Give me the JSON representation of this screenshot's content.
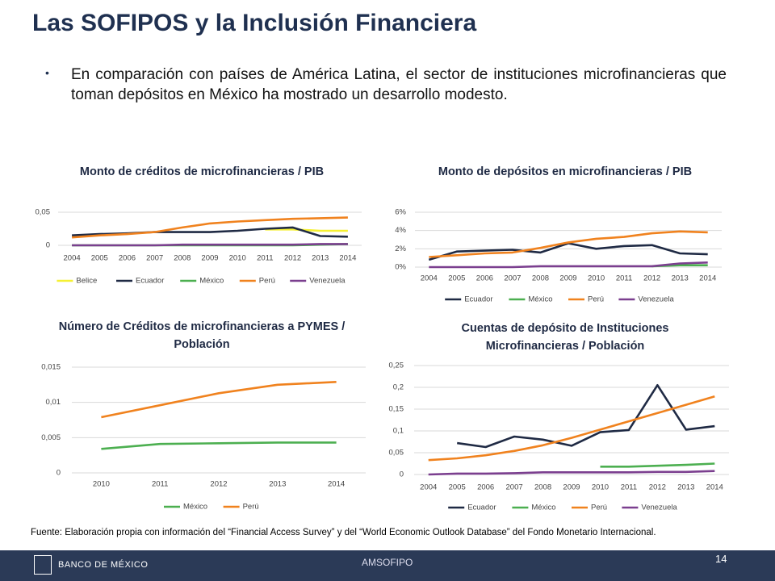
{
  "header": {
    "title": "Las SOFIPOS y la Inclusión Financiera"
  },
  "bullet": "En comparación con países de América Latina, el sector de instituciones microfinancieras que toman depósitos en México ha mostrado un desarrollo modesto.",
  "source": "Fuente: Elaboración propia con información del “Financial Access Survey” y del “World Economic Outlook Database” del Fondo Monetario Internacional.",
  "footer": {
    "logo": "BANCO DE MÉXICO",
    "center": "AMSOFIPO",
    "page": "14"
  },
  "chart_data": [
    {
      "type": "line",
      "title": "Monto de créditos de microfinancieras / PIB",
      "categories": [
        "2004",
        "2005",
        "2006",
        "2007",
        "2008",
        "2009",
        "2010",
        "2011",
        "2012",
        "2013",
        "2014"
      ],
      "ylim": [
        0,
        0.05
      ],
      "yticks": [
        0,
        {
          "value": 0.05,
          "label": "0,05"
        }
      ],
      "grid": true,
      "series": [
        {
          "name": "Belice",
          "color": "#f5f032",
          "values": [
            null,
            null,
            null,
            null,
            null,
            null,
            null,
            0.024,
            0.024,
            0.022,
            0.022
          ]
        },
        {
          "name": "Ecuador",
          "color": "#1f2a44",
          "values": [
            0.015,
            0.017,
            0.018,
            0.02,
            0.02,
            0.02,
            0.022,
            0.025,
            0.027,
            0.014,
            0.013
          ]
        },
        {
          "name": "México",
          "color": "#4caf50",
          "values": [
            0,
            0,
            0,
            0,
            0,
            0,
            0,
            0,
            0,
            0.001,
            0.002
          ]
        },
        {
          "name": "Perú",
          "color": "#f0821e",
          "values": [
            0.012,
            0.015,
            0.017,
            0.02,
            0.027,
            0.033,
            0.036,
            0.038,
            0.04,
            0.041,
            0.042
          ]
        },
        {
          "name": "Venezuela",
          "color": "#7b3f8f",
          "values": [
            0,
            0,
            0,
            0,
            0.001,
            0.001,
            0.001,
            0.001,
            0.001,
            0.002,
            0.002
          ]
        }
      ]
    },
    {
      "type": "line",
      "title": "Monto de depósitos en microfinancieras / PIB",
      "categories": [
        "2004",
        "2005",
        "2006",
        "2007",
        "2008",
        "2009",
        "2010",
        "2011",
        "2012",
        "2013",
        "2014"
      ],
      "ylim": [
        0,
        6
      ],
      "yticks": [
        {
          "value": 0,
          "label": "0%"
        },
        {
          "value": 2,
          "label": "2%"
        },
        {
          "value": 4,
          "label": "4%"
        },
        {
          "value": 6,
          "label": "6%"
        }
      ],
      "grid": true,
      "series": [
        {
          "name": "Ecuador",
          "color": "#1f2a44",
          "values": [
            0.8,
            1.7,
            1.8,
            1.9,
            1.6,
            2.6,
            2.0,
            2.3,
            2.4,
            1.5,
            1.4
          ]
        },
        {
          "name": "México",
          "color": "#4caf50",
          "values": [
            null,
            null,
            null,
            null,
            null,
            null,
            null,
            null,
            0.1,
            0.2,
            0.2
          ]
        },
        {
          "name": "Perú",
          "color": "#f0821e",
          "values": [
            1.1,
            1.3,
            1.5,
            1.6,
            2.1,
            2.7,
            3.1,
            3.3,
            3.7,
            3.9,
            3.8
          ]
        },
        {
          "name": "Venezuela",
          "color": "#7b3f8f",
          "values": [
            0,
            0,
            0,
            0,
            0.1,
            0.1,
            0.1,
            0.1,
            0.1,
            0.4,
            0.5
          ]
        }
      ]
    },
    {
      "type": "line",
      "title": "Número de Créditos de microfinancieras a PYMES / Población",
      "categories": [
        "2010",
        "2011",
        "2012",
        "2013",
        "2014"
      ],
      "ylim": [
        0,
        0.015
      ],
      "yticks": [
        0,
        {
          "value": 0.005,
          "label": "0,005"
        },
        {
          "value": 0.01,
          "label": "0,01"
        },
        {
          "value": 0.015,
          "label": "0,015"
        }
      ],
      "grid": true,
      "series": [
        {
          "name": "México",
          "color": "#4caf50",
          "values": [
            0.0034,
            0.0041,
            0.0042,
            0.0043,
            0.0043
          ]
        },
        {
          "name": "Perú",
          "color": "#f0821e",
          "values": [
            0.0079,
            0.0096,
            0.0113,
            0.0125,
            0.0129
          ]
        }
      ]
    },
    {
      "type": "line",
      "title": "Cuentas de depósito de Instituciones Microfinancieras / Población",
      "categories": [
        "2004",
        "2005",
        "2006",
        "2007",
        "2008",
        "2009",
        "2010",
        "2011",
        "2012",
        "2013",
        "2014"
      ],
      "ylim": [
        0,
        0.25
      ],
      "yticks": [
        0,
        {
          "value": 0.05,
          "label": "0,05"
        },
        {
          "value": 0.1,
          "label": "0,1"
        },
        {
          "value": 0.15,
          "label": "0,15"
        },
        {
          "value": 0.2,
          "label": "0,2"
        },
        {
          "value": 0.25,
          "label": "0,25"
        }
      ],
      "grid": true,
      "series": [
        {
          "name": "Ecuador",
          "color": "#1f2a44",
          "values": [
            null,
            0.072,
            0.063,
            0.087,
            0.08,
            0.066,
            0.097,
            0.102,
            0.205,
            0.103,
            0.111
          ]
        },
        {
          "name": "México",
          "color": "#4caf50",
          "values": [
            null,
            null,
            null,
            null,
            null,
            null,
            0.018,
            0.018,
            0.02,
            0.022,
            0.025
          ]
        },
        {
          "name": "Perú",
          "color": "#f0821e",
          "values": [
            0.033,
            0.037,
            0.044,
            0.054,
            0.067,
            0.084,
            0.103,
            0.122,
            0.141,
            0.16,
            0.179
          ]
        },
        {
          "name": "Venezuela",
          "color": "#7b3f8f",
          "values": [
            0,
            0.002,
            0.002,
            0.003,
            0.005,
            0.005,
            0.005,
            0.005,
            0.006,
            0.006,
            0.008
          ]
        }
      ]
    }
  ]
}
